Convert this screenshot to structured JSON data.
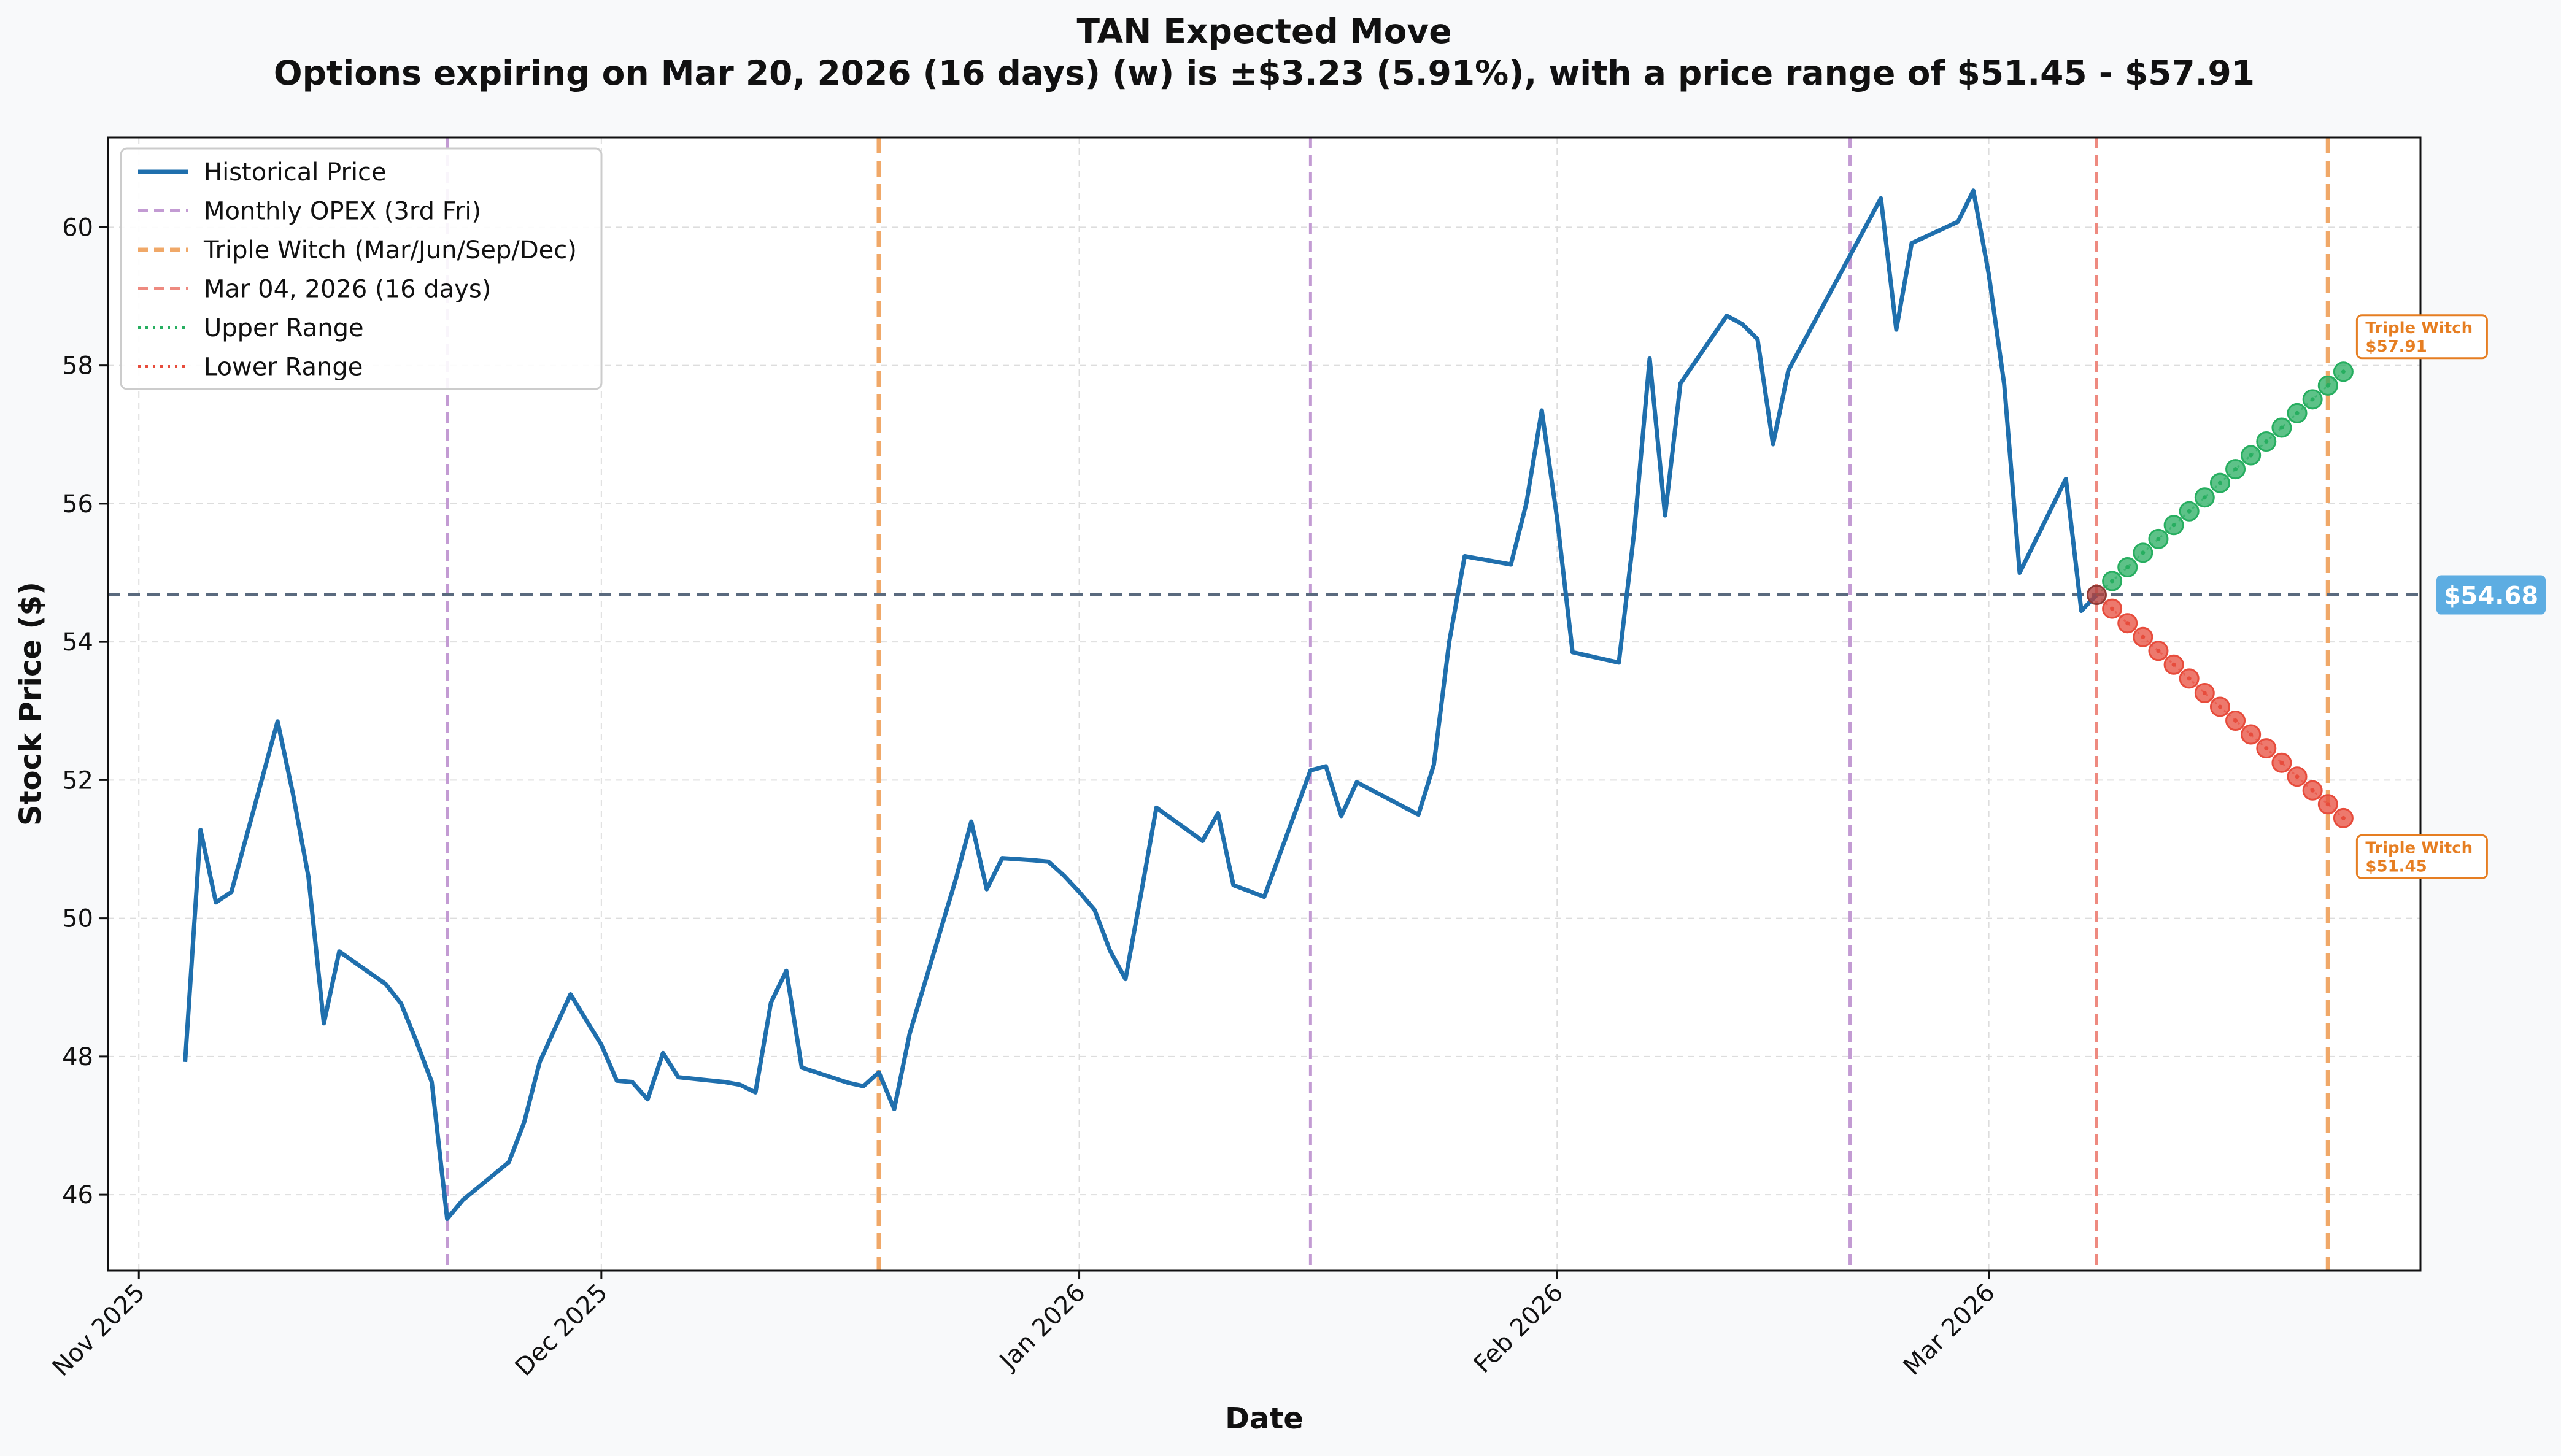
{
  "chart_data": {
    "type": "line",
    "title": "TAN Expected Move",
    "subtitle": "Options expiring on Mar 20, 2026 (16 days) (w) is ±$3.23 (5.91%), with a price range of $51.45 - $57.91",
    "xlabel": "Date",
    "ylabel": "Stock Price ($)",
    "xlim": [
      "2025-10-30",
      "2026-03-29"
    ],
    "ylim": [
      44.9,
      61.3
    ],
    "x_ticks": [
      {
        "date": "2025-11-01",
        "label": "Nov 2025"
      },
      {
        "date": "2025-12-01",
        "label": "Dec 2025"
      },
      {
        "date": "2026-01-01",
        "label": "Jan 2026"
      },
      {
        "date": "2026-02-01",
        "label": "Feb 2026"
      },
      {
        "date": "2026-03-01",
        "label": "Mar 2026"
      }
    ],
    "y_ticks": [
      46,
      48,
      50,
      52,
      54,
      56,
      58,
      60
    ],
    "grid": true,
    "legend_position": "top-left",
    "legend": [
      {
        "label": "Historical Price",
        "color": "#1f6fad",
        "style": "solid"
      },
      {
        "label": "Monthly OPEX (3rd Fri)",
        "color": "#c39bd3",
        "style": "dashed"
      },
      {
        "label": "Triple Witch (Mar/Jun/Sep/Dec)",
        "color": "#f0a868",
        "style": "dashed"
      },
      {
        "label": "Mar 04, 2026 (16 days)",
        "color": "#ee8a80",
        "style": "dashed"
      },
      {
        "label": "Upper Range",
        "color": "#27ae60",
        "style": "dotted"
      },
      {
        "label": "Lower Range",
        "color": "#e74c3c",
        "style": "dotted"
      }
    ],
    "series": [
      {
        "name": "Historical Price",
        "color": "#1f6fad",
        "points": [
          [
            "2025-11-04",
            47.92
          ],
          [
            "2025-11-05",
            51.28
          ],
          [
            "2025-11-06",
            50.23
          ],
          [
            "2025-11-07",
            50.38
          ],
          [
            "2025-11-10",
            52.85
          ],
          [
            "2025-11-11",
            51.8
          ],
          [
            "2025-11-12",
            50.6
          ],
          [
            "2025-11-13",
            48.48
          ],
          [
            "2025-11-14",
            49.52
          ],
          [
            "2025-11-17",
            49.05
          ],
          [
            "2025-11-18",
            48.77
          ],
          [
            "2025-11-19",
            48.22
          ],
          [
            "2025-11-20",
            47.63
          ],
          [
            "2025-11-21",
            45.65
          ],
          [
            "2025-11-22",
            45.92
          ],
          [
            "2025-11-25",
            46.47
          ],
          [
            "2025-11-26",
            47.05
          ],
          [
            "2025-11-27",
            47.92
          ],
          [
            "2025-11-29",
            48.9
          ],
          [
            "2025-12-01",
            48.17
          ],
          [
            "2025-12-02",
            47.65
          ],
          [
            "2025-12-03",
            47.63
          ],
          [
            "2025-12-04",
            47.38
          ],
          [
            "2025-12-05",
            48.05
          ],
          [
            "2025-12-06",
            47.7
          ],
          [
            "2025-12-09",
            47.63
          ],
          [
            "2025-12-10",
            47.59
          ],
          [
            "2025-12-11",
            47.48
          ],
          [
            "2025-12-12",
            48.78
          ],
          [
            "2025-12-13",
            49.24
          ],
          [
            "2025-12-14",
            47.84
          ],
          [
            "2025-12-17",
            47.62
          ],
          [
            "2025-12-18",
            47.57
          ],
          [
            "2025-12-19",
            47.77
          ],
          [
            "2025-12-20",
            47.24
          ],
          [
            "2025-12-21",
            48.33
          ],
          [
            "2025-12-24",
            50.57
          ],
          [
            "2025-12-25",
            51.4
          ],
          [
            "2025-12-26",
            50.42
          ],
          [
            "2025-12-27",
            50.87
          ],
          [
            "2025-12-29",
            50.84
          ],
          [
            "2025-12-30",
            50.82
          ],
          [
            "2025-12-31",
            50.62
          ],
          [
            "2026-01-01",
            50.38
          ],
          [
            "2026-01-02",
            50.12
          ],
          [
            "2026-01-03",
            49.53
          ],
          [
            "2026-01-04",
            49.12
          ],
          [
            "2026-01-05",
            50.34
          ],
          [
            "2026-01-06",
            51.6
          ],
          [
            "2026-01-09",
            51.12
          ],
          [
            "2026-01-10",
            51.52
          ],
          [
            "2026-01-11",
            50.48
          ],
          [
            "2026-01-13",
            50.31
          ],
          [
            "2026-01-16",
            52.14
          ],
          [
            "2026-01-17",
            52.2
          ],
          [
            "2026-01-18",
            51.48
          ],
          [
            "2026-01-19",
            51.97
          ],
          [
            "2026-01-23",
            51.5
          ],
          [
            "2026-01-24",
            52.22
          ],
          [
            "2026-01-25",
            54.0
          ],
          [
            "2026-01-26",
            55.24
          ],
          [
            "2026-01-29",
            55.12
          ],
          [
            "2026-01-30",
            56.0
          ],
          [
            "2026-01-31",
            57.35
          ],
          [
            "2026-02-01",
            55.78
          ],
          [
            "2026-02-02",
            53.85
          ],
          [
            "2026-02-05",
            53.7
          ],
          [
            "2026-02-06",
            55.6
          ],
          [
            "2026-02-07",
            58.1
          ],
          [
            "2026-02-08",
            55.83
          ],
          [
            "2026-02-09",
            57.74
          ],
          [
            "2026-02-12",
            58.72
          ],
          [
            "2026-02-13",
            58.6
          ],
          [
            "2026-02-14",
            58.38
          ],
          [
            "2026-02-15",
            56.86
          ],
          [
            "2026-02-16",
            57.93
          ],
          [
            "2026-02-22",
            60.42
          ],
          [
            "2026-02-23",
            58.52
          ],
          [
            "2026-02-24",
            59.77
          ],
          [
            "2026-02-27",
            60.08
          ],
          [
            "2026-02-28",
            60.53
          ],
          [
            "2026-03-01",
            59.32
          ],
          [
            "2026-03-02",
            57.72
          ],
          [
            "2026-03-03",
            55.0
          ],
          [
            "2026-03-06",
            56.36
          ],
          [
            "2026-03-07",
            54.45
          ],
          [
            "2026-03-08",
            54.68
          ]
        ]
      },
      {
        "name": "Upper Range",
        "color": "#27ae60",
        "points": [
          [
            "2026-03-08",
            54.68
          ],
          [
            "2026-03-09",
            54.88
          ],
          [
            "2026-03-10",
            55.08
          ],
          [
            "2026-03-11",
            55.29
          ],
          [
            "2026-03-12",
            55.49
          ],
          [
            "2026-03-13",
            55.69
          ],
          [
            "2026-03-14",
            55.89
          ],
          [
            "2026-03-15",
            56.09
          ],
          [
            "2026-03-16",
            56.3
          ],
          [
            "2026-03-17",
            56.5
          ],
          [
            "2026-03-18",
            56.7
          ],
          [
            "2026-03-19",
            56.9
          ],
          [
            "2026-03-20",
            57.1
          ],
          [
            "2026-03-21",
            57.31
          ],
          [
            "2026-03-22",
            57.51
          ],
          [
            "2026-03-23",
            57.71
          ],
          [
            "2026-03-24",
            57.91
          ]
        ]
      },
      {
        "name": "Lower Range",
        "color": "#e74c3c",
        "points": [
          [
            "2026-03-08",
            54.68
          ],
          [
            "2026-03-09",
            54.48
          ],
          [
            "2026-03-10",
            54.27
          ],
          [
            "2026-03-11",
            54.07
          ],
          [
            "2026-03-12",
            53.87
          ],
          [
            "2026-03-13",
            53.67
          ],
          [
            "2026-03-14",
            53.47
          ],
          [
            "2026-03-15",
            53.26
          ],
          [
            "2026-03-16",
            53.06
          ],
          [
            "2026-03-17",
            52.86
          ],
          [
            "2026-03-18",
            52.66
          ],
          [
            "2026-03-19",
            52.46
          ],
          [
            "2026-03-20",
            52.25
          ],
          [
            "2026-03-21",
            52.05
          ],
          [
            "2026-03-22",
            51.85
          ],
          [
            "2026-03-23",
            51.65
          ],
          [
            "2026-03-24",
            51.45
          ]
        ]
      }
    ],
    "vertical_lines": [
      {
        "date": "2025-11-21",
        "kind": "Monthly OPEX (3rd Fri)",
        "color": "#c39bd3"
      },
      {
        "date": "2025-12-19",
        "kind": "Triple Witch (Mar/Jun/Sep/Dec)",
        "color": "#f0a868"
      },
      {
        "date": "2026-01-16",
        "kind": "Monthly OPEX (3rd Fri)",
        "color": "#c39bd3"
      },
      {
        "date": "2026-02-20",
        "kind": "Monthly OPEX (3rd Fri)",
        "color": "#c39bd3"
      },
      {
        "date": "2026-03-08",
        "kind": "Mar 04, 2026 (16 days)",
        "color": "#ee8a80"
      },
      {
        "date": "2026-03-23",
        "kind": "Triple Witch (Mar/Jun/Sep/Dec)",
        "color": "#f0a868"
      }
    ],
    "current_price": {
      "value": 54.68,
      "label": "$54.68",
      "color": "#5a6a7e",
      "badge_color": "#5dade2"
    },
    "annotations": [
      {
        "date": "2026-03-24",
        "value": 57.91,
        "title": "Triple Witch",
        "label": "$57.91",
        "color": "#e67e22"
      },
      {
        "date": "2026-03-24",
        "value": 51.45,
        "title": "Triple Witch",
        "label": "$51.45",
        "color": "#e67e22"
      }
    ]
  }
}
